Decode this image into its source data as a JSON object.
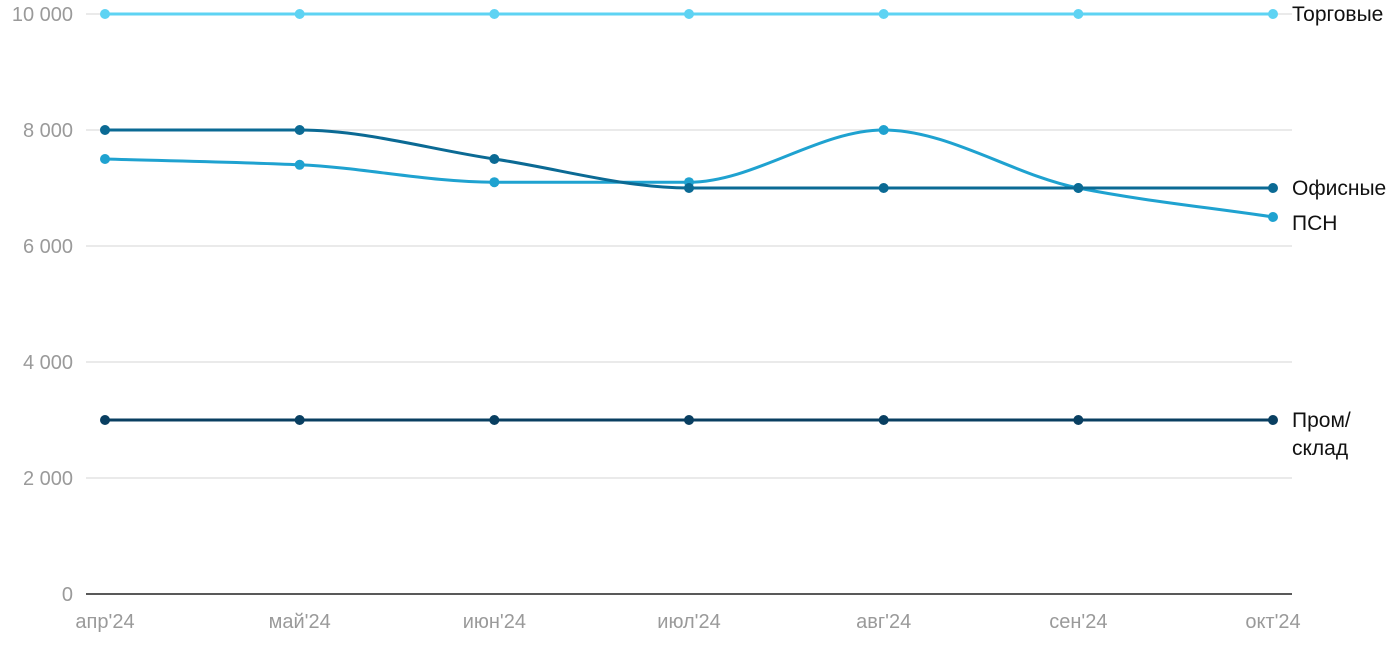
{
  "chart_data": {
    "type": "line",
    "title": "",
    "xlabel": "",
    "ylabel": "",
    "categories": [
      "апр'24",
      "май'24",
      "июн'24",
      "июл'24",
      "авг'24",
      "сен'24",
      "окт'24"
    ],
    "ylim": [
      0,
      10000
    ],
    "yticks": [
      0,
      2000,
      4000,
      6000,
      8000,
      10000
    ],
    "ytick_labels": [
      "0",
      "2 000",
      "4 000",
      "6 000",
      "8 000",
      "10 000"
    ],
    "grid": true,
    "legend": "end-of-line labels",
    "series": [
      {
        "name": "Торговые",
        "label_lines": [
          "Торговые"
        ],
        "color": "#5ed3f3",
        "values": [
          10000,
          10000,
          10000,
          10000,
          10000,
          10000,
          10000
        ]
      },
      {
        "name": "Офисные",
        "label_lines": [
          "Офисные"
        ],
        "color": "#0b6a94",
        "values": [
          8000,
          8000,
          7500,
          7000,
          7000,
          7000,
          7000
        ]
      },
      {
        "name": "ПСН",
        "label_lines": [
          "ПСН"
        ],
        "color": "#1fa2d0",
        "values": [
          7500,
          7400,
          7100,
          7100,
          8000,
          7000,
          6500
        ]
      },
      {
        "name": "Пром/склад",
        "label_lines": [
          "Пром/",
          "склад"
        ],
        "color": "#093f61",
        "values": [
          3000,
          3000,
          3000,
          3000,
          3000,
          3000,
          3000
        ]
      }
    ]
  }
}
